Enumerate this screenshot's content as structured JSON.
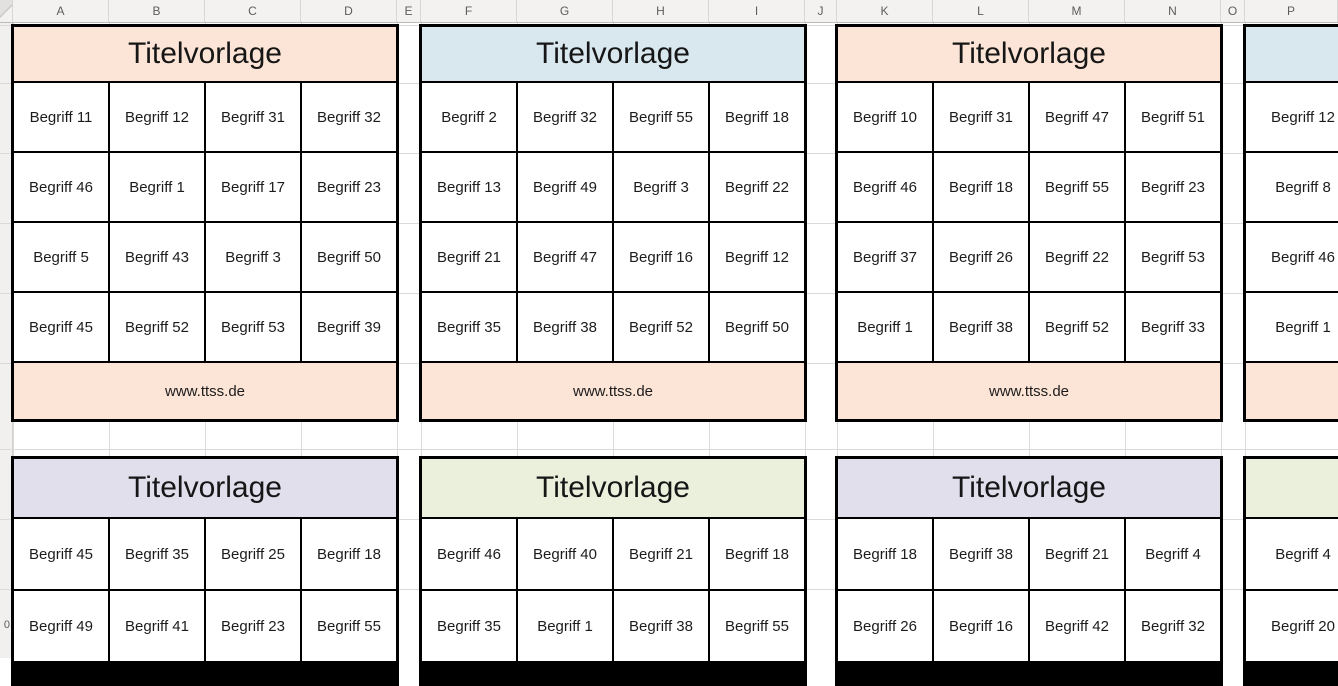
{
  "sheet": {
    "column_headers": [
      "A",
      "B",
      "C",
      "D",
      "E",
      "F",
      "G",
      "H",
      "I",
      "J",
      "K",
      "L",
      "M",
      "N",
      "O",
      "P"
    ],
    "row_number_partial": "0"
  },
  "colors": {
    "peach": "#fce5d6",
    "blue": "#d9e8ef",
    "lavender": "#e1dfeb",
    "green": "#ebf0dd",
    "card_border": "#000000",
    "gridline": "#dadada"
  },
  "cards": [
    {
      "title": "Titelvorlage",
      "footer": "www.ttss.de",
      "header_color": "#fce5d6",
      "footer_color": "#fce5d6",
      "rows": [
        [
          "Begriff 11",
          "Begriff 12",
          "Begriff 31",
          "Begriff 32"
        ],
        [
          "Begriff 46",
          "Begriff 1",
          "Begriff 17",
          "Begriff 23"
        ],
        [
          "Begriff 5",
          "Begriff 43",
          "Begriff 3",
          "Begriff 50"
        ],
        [
          "Begriff 45",
          "Begriff 52",
          "Begriff 53",
          "Begriff 39"
        ]
      ]
    },
    {
      "title": "Titelvorlage",
      "footer": "www.ttss.de",
      "header_color": "#d9e8ef",
      "footer_color": "#fce5d6",
      "rows": [
        [
          "Begriff 2",
          "Begriff 32",
          "Begriff 55",
          "Begriff 18"
        ],
        [
          "Begriff 13",
          "Begriff 49",
          "Begriff 3",
          "Begriff 22"
        ],
        [
          "Begriff 21",
          "Begriff 47",
          "Begriff 16",
          "Begriff 12"
        ],
        [
          "Begriff 35",
          "Begriff 38",
          "Begriff 52",
          "Begriff 50"
        ]
      ]
    },
    {
      "title": "Titelvorlage",
      "footer": "www.ttss.de",
      "header_color": "#fce5d6",
      "footer_color": "#fce5d6",
      "rows": [
        [
          "Begriff 10",
          "Begriff 31",
          "Begriff 47",
          "Begriff 51"
        ],
        [
          "Begriff 46",
          "Begriff 18",
          "Begriff 55",
          "Begriff 23"
        ],
        [
          "Begriff 37",
          "Begriff 26",
          "Begriff 22",
          "Begriff 53"
        ],
        [
          "Begriff 1",
          "Begriff 38",
          "Begriff 52",
          "Begriff 33"
        ]
      ]
    },
    {
      "header_color": "#d9e8ef",
      "footer_color": "#fce5d6",
      "rows": [
        [
          "Begriff 12"
        ],
        [
          "Begriff 8"
        ],
        [
          "Begriff 46"
        ],
        [
          "Begriff 1"
        ]
      ]
    },
    {
      "title": "Titelvorlage",
      "header_color": "#e1dfeb",
      "rows": [
        [
          "Begriff 45",
          "Begriff 35",
          "Begriff 25",
          "Begriff 18"
        ],
        [
          "Begriff 49",
          "Begriff 41",
          "Begriff 23",
          "Begriff 55"
        ]
      ]
    },
    {
      "title": "Titelvorlage",
      "header_color": "#ebf0dd",
      "rows": [
        [
          "Begriff 46",
          "Begriff 40",
          "Begriff 21",
          "Begriff 18"
        ],
        [
          "Begriff 35",
          "Begriff 1",
          "Begriff 38",
          "Begriff 55"
        ]
      ]
    },
    {
      "title": "Titelvorlage",
      "header_color": "#e1dfeb",
      "rows": [
        [
          "Begriff 18",
          "Begriff 38",
          "Begriff 21",
          "Begriff 4"
        ],
        [
          "Begriff 26",
          "Begriff 16",
          "Begriff 42",
          "Begriff 32"
        ]
      ]
    },
    {
      "header_color": "#ebf0dd",
      "rows": [
        [
          "Begriff 4"
        ],
        [
          "Begriff 20"
        ]
      ]
    }
  ]
}
